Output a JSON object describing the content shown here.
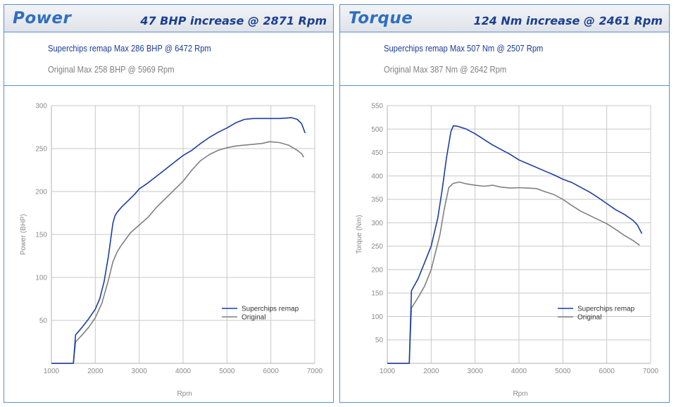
{
  "charts": [
    {
      "title": "Power",
      "increase": "47 BHP increase @ 2871 Rpm",
      "remap_line": "Superchips remap Max 286 BHP @ 6472 Rpm",
      "original_line": "Original Max 258 BHP @ 5969 Rpm"
    },
    {
      "title": "Torque",
      "increase": "124 Nm increase @ 2461 Rpm",
      "remap_line": "Superchips remap Max 507 Nm @ 2507 Rpm",
      "original_line": "Original Max 387 Nm @ 2642 Rpm"
    }
  ],
  "colors": {
    "remap": "#1c3f9e",
    "original": "#808080",
    "grid": "#c8c8c8",
    "border": "#5c8fc8",
    "title": "#2f6fc0"
  },
  "chart_data": [
    {
      "type": "line",
      "title": "Power",
      "xlabel": "Rpm",
      "ylabel": "Power (BHP)",
      "xlim": [
        1000,
        7000
      ],
      "ylim": [
        0,
        300
      ],
      "xticks": [
        1000,
        2000,
        3000,
        4000,
        5000,
        6000,
        7000
      ],
      "yticks": [
        50,
        100,
        150,
        200,
        250,
        300
      ],
      "grid": true,
      "legend_position": "bottom-right",
      "series": [
        {
          "name": "Superchips remap",
          "x": [
            1000,
            1500,
            1550,
            1700,
            1850,
            2000,
            2100,
            2200,
            2300,
            2400,
            2450,
            2500,
            2600,
            2700,
            2800,
            2900,
            3000,
            3200,
            3400,
            3600,
            3800,
            4000,
            4200,
            4400,
            4600,
            4800,
            5000,
            5200,
            5400,
            5600,
            5800,
            6000,
            6200,
            6472,
            6600,
            6700,
            6780
          ],
          "y": [
            0,
            0,
            33,
            42,
            52,
            63,
            75,
            95,
            125,
            163,
            172,
            176,
            182,
            187,
            192,
            197,
            203,
            210,
            218,
            226,
            234,
            242,
            248,
            256,
            263,
            269,
            274,
            280,
            284,
            285,
            285,
            285,
            285,
            286,
            284,
            279,
            268
          ]
        },
        {
          "name": "Original",
          "x": [
            1000,
            1500,
            1550,
            1700,
            1850,
            2000,
            2150,
            2300,
            2400,
            2500,
            2600,
            2700,
            2800,
            3000,
            3200,
            3400,
            3600,
            3800,
            4000,
            4200,
            4400,
            4600,
            4800,
            5000,
            5200,
            5400,
            5600,
            5800,
            5969,
            6200,
            6400,
            6600,
            6700,
            6750
          ],
          "y": [
            0,
            0,
            25,
            33,
            42,
            53,
            70,
            97,
            118,
            130,
            138,
            145,
            152,
            161,
            170,
            182,
            192,
            202,
            212,
            225,
            236,
            243,
            248,
            251,
            253,
            254,
            255,
            256,
            258,
            257,
            254,
            248,
            244,
            240
          ]
        }
      ]
    },
    {
      "type": "line",
      "title": "Torque",
      "xlabel": "Rpm",
      "ylabel": "Torque (Nm)",
      "xlim": [
        1000,
        7000
      ],
      "ylim": [
        0,
        550
      ],
      "xticks": [
        1000,
        2000,
        3000,
        4000,
        5000,
        6000,
        7000
      ],
      "yticks": [
        50,
        100,
        150,
        200,
        250,
        300,
        350,
        400,
        450,
        500,
        550
      ],
      "grid": true,
      "legend_position": "bottom-right",
      "series": [
        {
          "name": "Superchips remap",
          "x": [
            1000,
            1500,
            1550,
            1700,
            1850,
            2000,
            2150,
            2250,
            2350,
            2450,
            2507,
            2600,
            2800,
            3000,
            3200,
            3400,
            3600,
            3800,
            4000,
            4200,
            4400,
            4600,
            4800,
            5000,
            5200,
            5400,
            5600,
            5800,
            6000,
            6200,
            6400,
            6600,
            6700,
            6800
          ],
          "y": [
            0,
            0,
            155,
            180,
            215,
            250,
            310,
            370,
            440,
            495,
            507,
            506,
            500,
            490,
            478,
            466,
            456,
            446,
            434,
            426,
            418,
            410,
            402,
            393,
            386,
            376,
            366,
            354,
            341,
            328,
            318,
            305,
            295,
            277
          ]
        },
        {
          "name": "Original",
          "x": [
            1000,
            1500,
            1550,
            1700,
            1850,
            2000,
            2200,
            2300,
            2400,
            2500,
            2642,
            2800,
            3000,
            3200,
            3400,
            3600,
            3800,
            4000,
            4200,
            4400,
            4600,
            4800,
            5000,
            5200,
            5400,
            5600,
            5800,
            6000,
            6200,
            6400,
            6600,
            6750
          ],
          "y": [
            0,
            0,
            118,
            140,
            165,
            200,
            275,
            330,
            375,
            384,
            387,
            383,
            380,
            378,
            380,
            376,
            374,
            375,
            374,
            373,
            366,
            360,
            350,
            337,
            325,
            316,
            307,
            298,
            286,
            273,
            262,
            252
          ]
        }
      ]
    }
  ]
}
